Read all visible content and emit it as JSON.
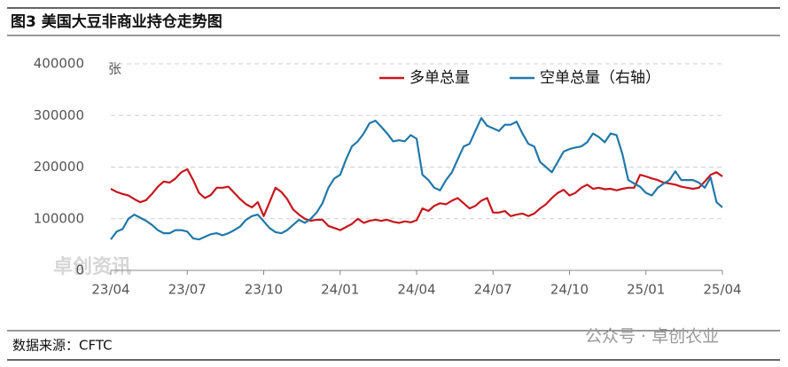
{
  "chart_data": {
    "type": "line",
    "title": "图3 美国大豆非商业持仓走势图",
    "unit": "张",
    "source": "数据来源：CFTC",
    "watermark": "卓创资讯",
    "footer_watermark": "公众号 · 卓创农业",
    "categories": [
      "23/04",
      null,
      null,
      null,
      null,
      null,
      null,
      null,
      null,
      null,
      null,
      null,
      null,
      "23/07",
      null,
      null,
      null,
      null,
      null,
      null,
      null,
      null,
      null,
      null,
      null,
      null,
      "23/10",
      null,
      null,
      null,
      null,
      null,
      null,
      null,
      null,
      null,
      null,
      null,
      null,
      "24/01",
      null,
      null,
      null,
      null,
      null,
      null,
      null,
      null,
      null,
      null,
      null,
      null,
      "24/04",
      null,
      null,
      null,
      null,
      null,
      null,
      null,
      null,
      null,
      null,
      null,
      null,
      "24/07",
      null,
      null,
      null,
      null,
      null,
      null,
      null,
      null,
      null,
      null,
      null,
      null,
      "24/10",
      null,
      null,
      null,
      null,
      null,
      null,
      null,
      null,
      null,
      null,
      null,
      null,
      "25/01",
      null,
      null,
      null,
      null,
      null,
      null,
      null,
      null,
      null,
      null,
      null,
      null,
      "25/04"
    ],
    "series": [
      {
        "name": "多单总量",
        "color": "#c8161d",
        "values": [
          158000,
          152000,
          148000,
          145000,
          138000,
          132000,
          136000,
          148000,
          162000,
          172000,
          170000,
          178000,
          190000,
          196000,
          175000,
          150000,
          140000,
          146000,
          160000,
          160000,
          162000,
          150000,
          138000,
          128000,
          122000,
          132000,
          105000,
          132000,
          160000,
          152000,
          138000,
          118000,
          108000,
          100000,
          96000,
          98000,
          98000,
          86000,
          82000,
          78000,
          84000,
          90000,
          100000,
          92000,
          96000,
          98000,
          96000,
          98000,
          94000,
          92000,
          95000,
          93000,
          97000,
          120000,
          115000,
          125000,
          130000,
          128000,
          135000,
          140000,
          130000,
          120000,
          125000,
          135000,
          140000,
          112000,
          112000,
          115000,
          105000,
          108000,
          110000,
          105000,
          110000,
          120000,
          128000,
          140000,
          150000,
          156000,
          145000,
          150000,
          160000,
          166000,
          158000,
          160000,
          157000,
          158000,
          155000,
          158000,
          160000,
          160000,
          185000,
          182000,
          178000,
          175000,
          170000,
          168000,
          166000,
          162000,
          160000,
          158000,
          160000,
          172000,
          185000,
          190000,
          182000
        ]
      },
      {
        "name": "空单总量（右轴）",
        "color": "#2178a8",
        "values": [
          60000,
          75000,
          80000,
          100000,
          108000,
          102000,
          96000,
          88000,
          78000,
          72000,
          72000,
          78000,
          78000,
          75000,
          62000,
          60000,
          65000,
          70000,
          72000,
          68000,
          72000,
          78000,
          85000,
          98000,
          105000,
          108000,
          95000,
          82000,
          74000,
          72000,
          78000,
          88000,
          98000,
          92000,
          100000,
          112000,
          130000,
          160000,
          178000,
          185000,
          215000,
          240000,
          250000,
          265000,
          285000,
          290000,
          278000,
          265000,
          250000,
          252000,
          250000,
          262000,
          255000,
          185000,
          175000,
          160000,
          155000,
          175000,
          190000,
          215000,
          240000,
          245000,
          270000,
          295000,
          280000,
          275000,
          270000,
          282000,
          282000,
          288000,
          265000,
          245000,
          240000,
          210000,
          200000,
          190000,
          210000,
          230000,
          235000,
          238000,
          240000,
          248000,
          265000,
          258000,
          248000,
          265000,
          262000,
          225000,
          175000,
          168000,
          162000,
          150000,
          145000,
          160000,
          168000,
          175000,
          192000,
          175000,
          175000,
          175000,
          170000,
          160000,
          180000,
          132000,
          122000
        ]
      }
    ],
    "ylim": [
      0,
      400000
    ],
    "yticks": [
      0,
      100000,
      200000,
      300000,
      400000
    ],
    "grid": true
  }
}
